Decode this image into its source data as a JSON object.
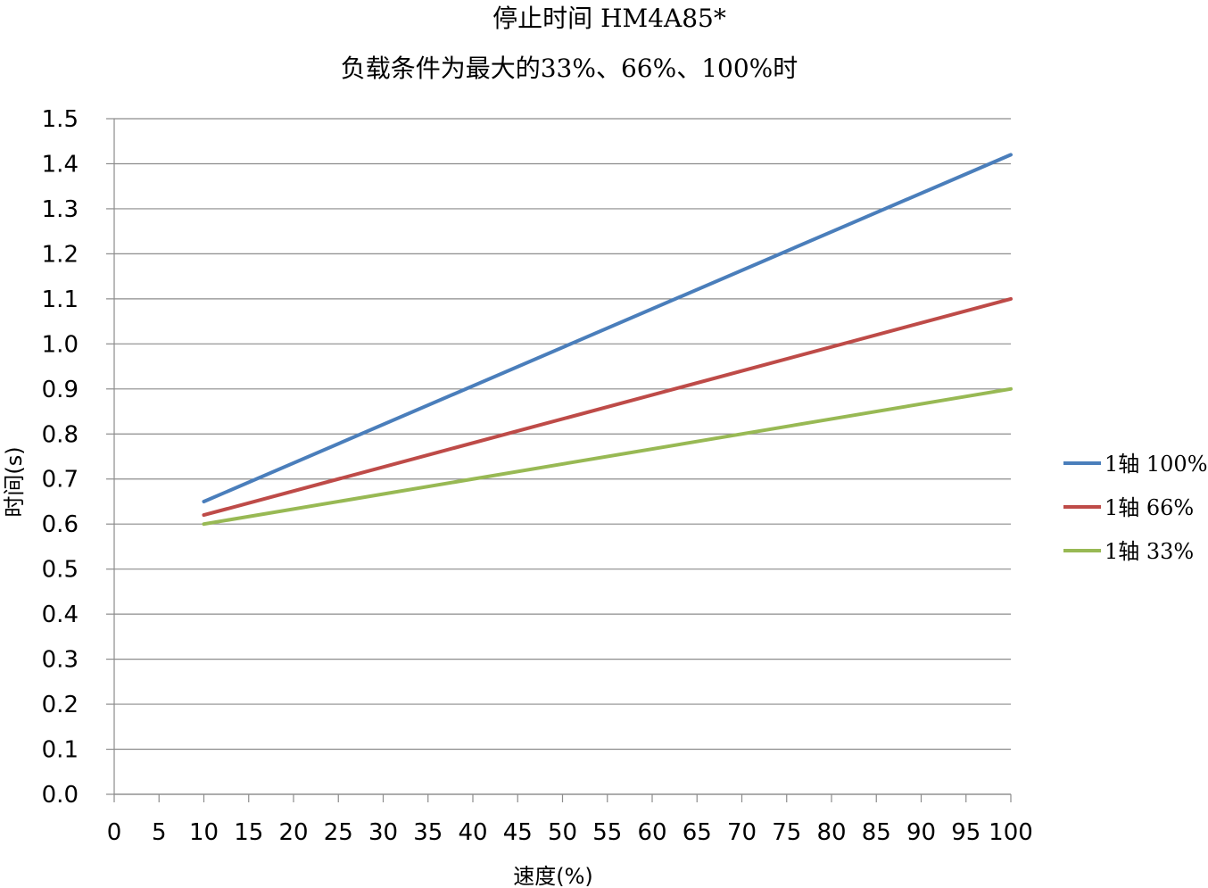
{
  "chart_data": {
    "type": "line",
    "title": "停止时间 HM4A85*",
    "subtitle": "负载条件为最大的33%、66%、100%时",
    "xlabel": "速度(%)",
    "ylabel": "时间(s)",
    "xlim": [
      0,
      100
    ],
    "ylim": [
      0.0,
      1.5
    ],
    "xticks": [
      "0",
      "5",
      "10",
      "15",
      "20",
      "25",
      "30",
      "35",
      "40",
      "45",
      "50",
      "55",
      "60",
      "65",
      "70",
      "75",
      "80",
      "85",
      "90",
      "95",
      "100"
    ],
    "yticks": [
      "0.0",
      "0.1",
      "0.2",
      "0.3",
      "0.4",
      "0.5",
      "0.6",
      "0.7",
      "0.8",
      "0.9",
      "1.0",
      "1.1",
      "1.2",
      "1.3",
      "1.4",
      "1.5"
    ],
    "grid": "horizontal",
    "legend_position": "right",
    "series": [
      {
        "name": "1轴 100%",
        "color": "#4a7ebb",
        "x": [
          10,
          100
        ],
        "y": [
          0.65,
          1.42
        ]
      },
      {
        "name": "1轴 66%",
        "color": "#be4b48",
        "x": [
          10,
          100
        ],
        "y": [
          0.62,
          1.1
        ]
      },
      {
        "name": "1轴 33%",
        "color": "#98b954",
        "x": [
          10,
          100
        ],
        "y": [
          0.6,
          0.9
        ]
      }
    ]
  }
}
